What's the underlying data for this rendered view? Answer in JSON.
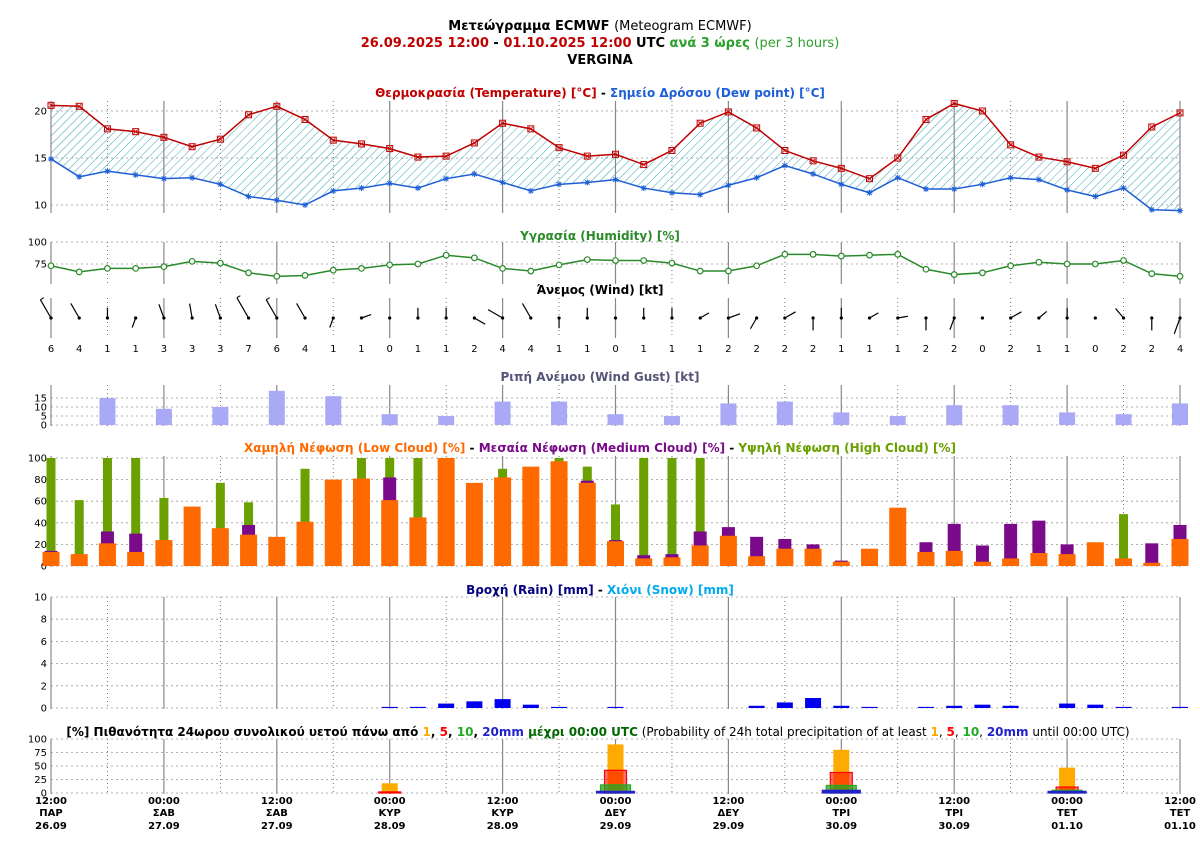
{
  "header": {
    "title_bold": "Μετεώγραμμα ECMWF",
    "title_normal": "(Meteogram ECMWF)",
    "range_start": "26.09.2025 12:00",
    "range_sep": "-",
    "range_end": "01.10.2025 12:00",
    "utc": "UTC",
    "step_gr": "ανά 3 ώρες",
    "step_en": "(per 3 hours)",
    "location": "VERGINA"
  },
  "colors": {
    "temperature": "#c00000",
    "dew_point": "#1f5fd6",
    "humidity": "#2a8a2a",
    "gust": "#a9a9f5",
    "low_cloud": "#ff6a00",
    "medium_cloud": "#7a0a8a",
    "high_cloud": "#6aa000",
    "rain": "#0000ee",
    "snow": "#00aaee",
    "p1": "#ffaa00",
    "p5": "#ff0000",
    "p10": "#22aa22",
    "p20": "#2222cc"
  },
  "chart_data": [
    {
      "type": "line",
      "title_parts": [
        "Θερμοκρασία (Temperature) [°C]",
        " - ",
        "Σημείο Δρόσου (Dew point) [°C]"
      ],
      "y_ticks": [
        10,
        15,
        20
      ],
      "ylim": [
        9,
        21
      ],
      "series": [
        {
          "name": "Θερμοκρασία (Temperature) [°C]",
          "values": [
            20.6,
            20.5,
            18.1,
            17.8,
            17.2,
            16.2,
            17.0,
            19.6,
            20.5,
            19.1,
            16.9,
            16.5,
            16.0,
            15.1,
            15.2,
            16.6,
            18.7,
            18.1,
            16.1,
            15.2,
            15.4,
            14.3,
            15.8,
            18.7,
            19.9,
            18.2,
            15.8,
            14.7,
            13.9,
            12.8,
            15.0,
            19.1,
            20.8,
            20.0,
            16.4,
            15.1,
            14.6,
            13.9,
            15.3,
            18.3,
            19.8
          ]
        },
        {
          "name": "Σημείο Δρόσου (Dew point) [°C]",
          "values": [
            14.9,
            13.0,
            13.6,
            13.2,
            12.8,
            12.9,
            12.2,
            10.9,
            10.5,
            10.0,
            11.5,
            11.8,
            12.3,
            11.8,
            12.8,
            13.3,
            12.4,
            11.5,
            12.2,
            12.4,
            12.7,
            11.8,
            11.3,
            11.1,
            12.1,
            12.9,
            14.2,
            13.3,
            12.2,
            11.3,
            12.9,
            11.7,
            11.7,
            12.2,
            12.9,
            12.7,
            11.6,
            10.9,
            11.8,
            9.5,
            9.4
          ]
        }
      ]
    },
    {
      "type": "line",
      "title": "Υγρασία (Humidity) [%]",
      "y_ticks": [
        75,
        100
      ],
      "ylim": [
        60,
        100
      ],
      "series": [
        {
          "name": "Υγρασία (Humidity) [%]",
          "values": [
            73,
            66,
            70,
            70,
            72,
            78,
            76,
            65,
            61,
            62,
            68,
            70,
            74,
            75,
            85,
            82,
            70,
            67,
            74,
            80,
            79,
            79,
            76,
            67,
            67,
            73,
            86,
            86,
            84,
            85,
            86,
            69,
            63,
            65,
            73,
            77,
            75,
            75,
            79,
            64,
            61
          ]
        }
      ]
    },
    {
      "type": "barbs",
      "title": "Άνεμος (Wind) [kt]",
      "speeds": [
        6,
        4,
        1,
        1,
        3,
        3,
        3,
        7,
        6,
        4,
        1,
        1,
        0,
        1,
        1,
        2,
        4,
        4,
        1,
        1,
        0,
        1,
        1,
        1,
        2,
        2,
        2,
        2,
        1,
        1,
        1,
        2,
        2,
        0,
        2,
        1,
        1,
        0,
        2,
        2,
        4
      ],
      "directions_deg": [
        330,
        330,
        0,
        200,
        340,
        350,
        340,
        330,
        330,
        330,
        200,
        70,
        0,
        0,
        0,
        120,
        300,
        330,
        180,
        0,
        0,
        0,
        0,
        60,
        70,
        210,
        60,
        180,
        0,
        60,
        80,
        180,
        200,
        0,
        60,
        50,
        0,
        0,
        320,
        180,
        200
      ]
    },
    {
      "type": "bar",
      "title": "Ριπή Ανέμου (Wind Gust) [kt]",
      "y_ticks": [
        0,
        5,
        10,
        15
      ],
      "ylim": [
        0,
        20
      ],
      "x_index": [
        2,
        4,
        6,
        8,
        10,
        12,
        14,
        16,
        18,
        20,
        22,
        24,
        26,
        28,
        30,
        32,
        34,
        36,
        38,
        40
      ],
      "values": [
        15,
        9,
        10,
        19,
        16,
        6,
        5,
        13,
        13,
        6,
        5,
        12,
        13,
        7,
        5,
        11,
        11,
        7,
        6,
        12
      ]
    },
    {
      "type": "bar",
      "title_parts": [
        "Χαμηλή Νέφωση (Low Cloud) [%]",
        " - ",
        "Μεσαία Νέφωση (Medium Cloud) [%]",
        " - ",
        "Υψηλή Νέφωση (High Cloud) [%]"
      ],
      "y_ticks": [
        0,
        20,
        40,
        60,
        80,
        100
      ],
      "ylim": [
        0,
        100
      ],
      "series": [
        {
          "name": "Χαμηλή Νέφωση (Low Cloud) [%]",
          "values": [
            13,
            11,
            21,
            13,
            24,
            55,
            35,
            29,
            27,
            41,
            80,
            81,
            61,
            45,
            100,
            77,
            82,
            92,
            97,
            77,
            23,
            7,
            8,
            19,
            28,
            9,
            16,
            16,
            4,
            16,
            54,
            13,
            14,
            4,
            7,
            12,
            11,
            22,
            7,
            3,
            25
          ]
        },
        {
          "name": "Μεσαία Νέφωση (Medium Cloud) [%]",
          "values": [
            14,
            0,
            32,
            30,
            0,
            0,
            0,
            38,
            0,
            0,
            0,
            0,
            82,
            0,
            0,
            0,
            0,
            0,
            0,
            79,
            24,
            10,
            11,
            32,
            36,
            27,
            25,
            20,
            5,
            0,
            0,
            22,
            39,
            19,
            39,
            42,
            20,
            0,
            0,
            21,
            38
          ]
        },
        {
          "name": "Υψηλή Νέφωση (High Cloud) [%]",
          "values": [
            100,
            61,
            100,
            100,
            63,
            0,
            77,
            59,
            0,
            90,
            0,
            100,
            100,
            100,
            0,
            0,
            90,
            0,
            100,
            92,
            57,
            100,
            100,
            100,
            0,
            0,
            0,
            0,
            0,
            0,
            0,
            0,
            0,
            0,
            0,
            0,
            0,
            0,
            48,
            0,
            0
          ]
        }
      ]
    },
    {
      "type": "bar",
      "title_parts": [
        "Βροχή (Rain) [mm]",
        " - ",
        "Χιόνι (Snow) [mm]"
      ],
      "y_ticks": [
        0,
        2,
        4,
        6,
        8,
        10
      ],
      "ylim": [
        0,
        10
      ],
      "series": [
        {
          "name": "Βροχή (Rain) [mm]",
          "values": [
            0,
            0,
            0,
            0,
            0,
            0,
            0,
            0,
            0,
            0,
            0,
            0,
            0.1,
            0.1,
            0.4,
            0.6,
            0.8,
            0.3,
            0.1,
            0,
            0.1,
            0,
            0,
            0,
            0,
            0.2,
            0.5,
            0.9,
            0.2,
            0.1,
            0,
            0.1,
            0.2,
            0.3,
            0.2,
            0,
            0.4,
            0.3,
            0.1,
            0,
            0.1
          ]
        },
        {
          "name": "Χιόνι (Snow) [mm]",
          "values": [
            0,
            0,
            0,
            0,
            0,
            0,
            0,
            0,
            0,
            0,
            0,
            0,
            0,
            0,
            0,
            0,
            0,
            0,
            0,
            0,
            0,
            0,
            0,
            0,
            0,
            0,
            0,
            0,
            0,
            0,
            0,
            0,
            0,
            0,
            0,
            0,
            0,
            0,
            0,
            0,
            0
          ]
        }
      ]
    },
    {
      "type": "bar",
      "title_parts": [
        "[%] Πιθανότητα 24ωρου συνολικού υετού πάνω από ",
        "1",
        ", ",
        "5",
        ", ",
        "10",
        ", ",
        "20mm",
        " μέχρι 00:00 UTC",
        " (Probability of 24h total precipitation of at least ",
        "1",
        ", ",
        "5",
        ", ",
        "10",
        ", ",
        "20mm",
        " until 00:00 UTC)"
      ],
      "y_ticks": [
        0,
        25,
        50,
        75,
        100
      ],
      "ylim": [
        0,
        100
      ],
      "x_index": [
        12,
        20,
        28,
        36
      ],
      "series": [
        {
          "name": "1",
          "values": [
            18,
            90,
            80,
            47
          ]
        },
        {
          "name": "5",
          "values": [
            2,
            42,
            38,
            11
          ]
        },
        {
          "name": "10",
          "values": [
            0,
            15,
            14,
            5
          ]
        },
        {
          "name": "20mm",
          "values": [
            0,
            3,
            5,
            3
          ]
        }
      ]
    }
  ],
  "x_axis": {
    "labels": [
      {
        "time": "12:00",
        "day": "ΠΑΡ",
        "date": "26.09"
      },
      {
        "time": "00:00",
        "day": "ΣΑΒ",
        "date": "27.09"
      },
      {
        "time": "12:00",
        "day": "ΣΑΒ",
        "date": "27.09"
      },
      {
        "time": "00:00",
        "day": "ΚΥΡ",
        "date": "28.09"
      },
      {
        "time": "12:00",
        "day": "ΚΥΡ",
        "date": "28.09"
      },
      {
        "time": "00:00",
        "day": "ΔΕΥ",
        "date": "29.09"
      },
      {
        "time": "12:00",
        "day": "ΔΕΥ",
        "date": "29.09"
      },
      {
        "time": "00:00",
        "day": "ΤΡΙ",
        "date": "30.09"
      },
      {
        "time": "12:00",
        "day": "ΤΡΙ",
        "date": "30.09"
      },
      {
        "time": "00:00",
        "day": "ΤΕΤ",
        "date": "01.10"
      },
      {
        "time": "12:00",
        "day": "ΤΕΤ",
        "date": "01.10"
      }
    ]
  }
}
